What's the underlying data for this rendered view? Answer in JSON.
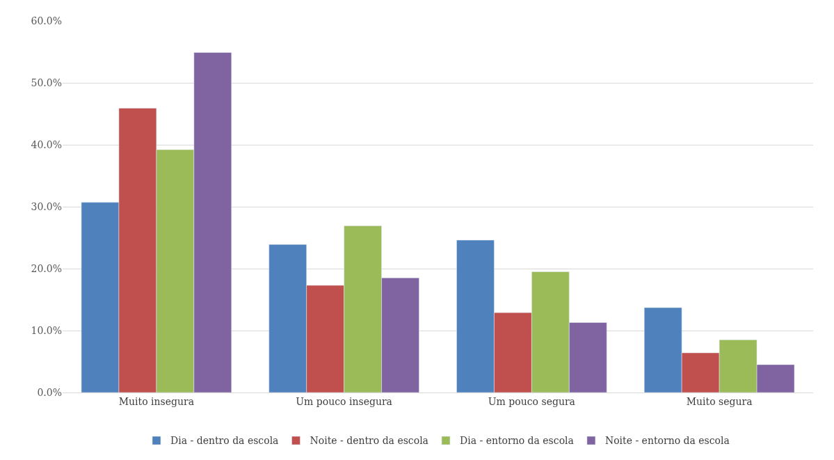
{
  "chart_data": {
    "type": "bar",
    "categories": [
      "Muito insegura",
      "Um pouco insegura",
      "Um pouco segura",
      "Muito segura"
    ],
    "series": [
      {
        "name": "Dia - dentro da escola",
        "color": "#4f81bd",
        "values": [
          30.7,
          23.9,
          24.6,
          13.7
        ]
      },
      {
        "name": "Noite - dentro da escola",
        "color": "#c0504d",
        "values": [
          45.9,
          17.3,
          12.9,
          6.4
        ]
      },
      {
        "name": "Dia - entorno da escola",
        "color": "#9bbb59",
        "values": [
          39.2,
          26.9,
          19.5,
          8.5
        ]
      },
      {
        "name": "Noite - entorno da escola",
        "color": "#8064a2",
        "values": [
          54.9,
          18.5,
          11.3,
          4.5
        ]
      }
    ],
    "ylim": [
      0,
      60
    ],
    "yticks": [
      {
        "value": 0,
        "label": "0.0%"
      },
      {
        "value": 10,
        "label": "10.0%"
      },
      {
        "value": 20,
        "label": "20.0%"
      },
      {
        "value": 30,
        "label": "30.0%"
      },
      {
        "value": 40,
        "label": "40.0%"
      },
      {
        "value": 50,
        "label": "50.0%"
      },
      {
        "value": 60,
        "label": "60.0%"
      }
    ],
    "grid": "y",
    "legend": "bottom"
  }
}
